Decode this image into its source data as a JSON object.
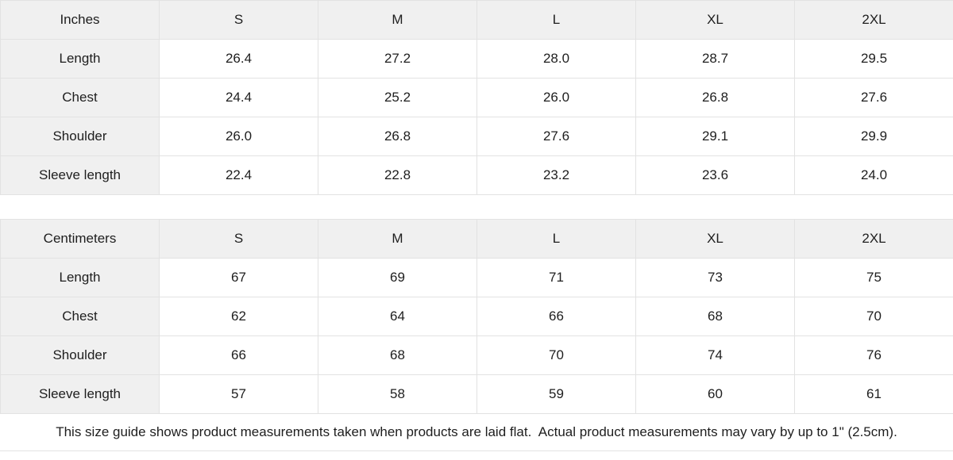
{
  "colors": {
    "header_bg": "#f0f0f0",
    "border": "#e2e2e2",
    "text": "#1e1e1e",
    "background": "#ffffff"
  },
  "tables": [
    {
      "unit_label": "Inches",
      "size_headers": [
        "S",
        "M",
        "L",
        "XL",
        "2XL"
      ],
      "rows": [
        {
          "label": "Length",
          "values": [
            "26.4",
            "27.2",
            "28.0",
            "28.7",
            "29.5"
          ]
        },
        {
          "label": "Chest",
          "values": [
            "24.4",
            "25.2",
            "26.0",
            "26.8",
            "27.6"
          ]
        },
        {
          "label": "Shoulder",
          "values": [
            "26.0",
            "26.8",
            "27.6",
            "29.1",
            "29.9"
          ]
        },
        {
          "label": "Sleeve length",
          "values": [
            "22.4",
            "22.8",
            "23.2",
            "23.6",
            "24.0"
          ]
        }
      ]
    },
    {
      "unit_label": "Centimeters",
      "size_headers": [
        "S",
        "M",
        "L",
        "XL",
        "2XL"
      ],
      "rows": [
        {
          "label": "Length",
          "values": [
            "67",
            "69",
            "71",
            "73",
            "75"
          ]
        },
        {
          "label": "Chest",
          "values": [
            "62",
            "64",
            "66",
            "68",
            "70"
          ]
        },
        {
          "label": "Shoulder",
          "values": [
            "66",
            "68",
            "70",
            "74",
            "76"
          ]
        },
        {
          "label": "Sleeve length",
          "values": [
            "57",
            "58",
            "59",
            "60",
            "61"
          ]
        }
      ]
    }
  ],
  "footer_note": "This size guide shows product measurements taken when products are laid flat.  Actual product measurements may vary by up to 1\" (2.5cm)."
}
